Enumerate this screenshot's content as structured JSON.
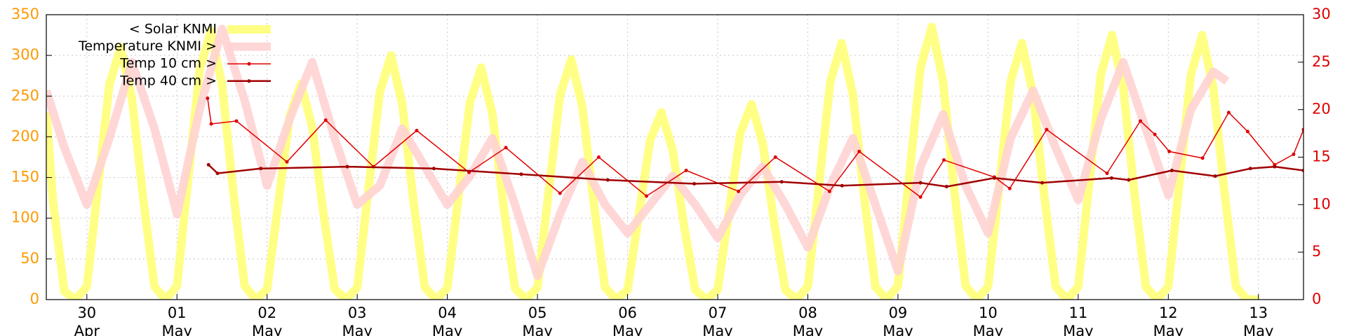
{
  "chart_data": {
    "type": "line",
    "xlim": [
      -0.45,
      13.5
    ],
    "xticks": [
      {
        "value": 0,
        "label": "30",
        "month": "Apr"
      },
      {
        "value": 1,
        "label": "01",
        "month": "May"
      },
      {
        "value": 2,
        "label": "02",
        "month": "May"
      },
      {
        "value": 3,
        "label": "03",
        "month": "May"
      },
      {
        "value": 4,
        "label": "04",
        "month": "May"
      },
      {
        "value": 5,
        "label": "05",
        "month": "May"
      },
      {
        "value": 6,
        "label": "06",
        "month": "May"
      },
      {
        "value": 7,
        "label": "07",
        "month": "May"
      },
      {
        "value": 8,
        "label": "08",
        "month": "May"
      },
      {
        "value": 9,
        "label": "09",
        "month": "May"
      },
      {
        "value": 10,
        "label": "10",
        "month": "May"
      },
      {
        "value": 11,
        "label": "11",
        "month": "May"
      },
      {
        "value": 12,
        "label": "12",
        "month": "May"
      },
      {
        "value": 13,
        "label": "13",
        "month": "May"
      }
    ],
    "ylim": [
      0,
      350
    ],
    "yticks": [
      0,
      50,
      100,
      150,
      200,
      250,
      300,
      350
    ],
    "y2lim": [
      0,
      30
    ],
    "y2ticks": [
      0,
      5,
      10,
      15,
      20,
      25,
      30
    ],
    "grid": true,
    "legend": "upper left",
    "series": [
      {
        "name": "< Solar KNMI",
        "color": "#ffff70",
        "axis": "y",
        "x": [
          -0.45,
          -0.375,
          -0.25,
          -0.125,
          0,
          0.125,
          0.25,
          0.375,
          0.5,
          0.625,
          0.75,
          0.875,
          1,
          1.125,
          1.25,
          1.375,
          1.5,
          1.625,
          1.75,
          1.875,
          2,
          2.125,
          2.25,
          2.375,
          2.5,
          2.625,
          2.75,
          2.875,
          3,
          3.125,
          3.25,
          3.375,
          3.5,
          3.625,
          3.75,
          3.875,
          4,
          4.125,
          4.25,
          4.375,
          4.5,
          4.625,
          4.75,
          4.875,
          5,
          5.125,
          5.25,
          5.375,
          5.5,
          5.625,
          5.75,
          5.875,
          6,
          6.125,
          6.25,
          6.375,
          6.5,
          6.625,
          6.75,
          6.875,
          7,
          7.125,
          7.25,
          7.375,
          7.5,
          7.625,
          7.75,
          7.875,
          8,
          8.125,
          8.25,
          8.375,
          8.5,
          8.625,
          8.75,
          8.875,
          9,
          9.125,
          9.25,
          9.375,
          9.5,
          9.625,
          9.75,
          9.875,
          10,
          10.125,
          10.25,
          10.375,
          10.5,
          10.625,
          10.75,
          10.875,
          11,
          11.125,
          11.25,
          11.375,
          11.5,
          11.625,
          11.75,
          11.875,
          12,
          12.125,
          12.25,
          12.375,
          12.5,
          12.625,
          12.75,
          12.875,
          13
        ],
        "values": [
          230,
          120,
          10,
          0,
          16,
          140,
          264,
          310,
          248,
          124,
          16,
          0,
          17,
          149,
          281,
          330,
          264,
          132,
          17,
          0,
          13,
          119,
          225,
          265,
          212,
          106,
          13,
          0,
          15,
          135,
          255,
          300,
          240,
          120,
          15,
          0,
          14,
          128,
          242,
          285,
          228,
          114,
          14,
          0,
          15,
          133,
          251,
          295,
          236,
          118,
          15,
          0,
          12,
          104,
          196,
          230,
          184,
          92,
          12,
          0,
          12,
          108,
          204,
          240,
          192,
          96,
          12,
          0,
          16,
          142,
          268,
          315,
          252,
          126,
          16,
          0,
          17,
          151,
          285,
          335,
          268,
          134,
          17,
          0,
          16,
          142,
          268,
          315,
          252,
          126,
          16,
          0,
          16,
          146,
          276,
          325,
          260,
          130,
          16,
          0,
          16,
          146,
          276,
          325,
          260,
          130,
          16,
          0,
          0
        ]
      },
      {
        "name": "Temperature KNMI >",
        "color": "#ffd3d3",
        "axis": "y2",
        "x": [
          -0.45,
          -0.25,
          0,
          0.25,
          0.5,
          0.75,
          1,
          1.25,
          1.5,
          1.75,
          2,
          2.25,
          2.5,
          2.75,
          3,
          3.25,
          3.5,
          3.75,
          4,
          4.25,
          4.5,
          4.75,
          5,
          5.25,
          5.5,
          5.75,
          6,
          6.25,
          6.5,
          6.75,
          7,
          7.25,
          7.5,
          7.75,
          8,
          8.25,
          8.5,
          8.75,
          9,
          9.25,
          9.5,
          9.75,
          10,
          10.25,
          10.5,
          10.75,
          11,
          11.25,
          11.5,
          11.75,
          12,
          12.25,
          12.5,
          12.65
        ],
        "values": [
          22,
          16,
          10,
          17,
          25,
          18,
          9,
          20,
          28.5,
          21,
          12,
          19,
          25,
          17,
          10,
          12,
          18,
          14,
          10,
          13,
          17,
          10,
          2.5,
          9,
          14.5,
          10,
          7,
          10,
          13,
          10,
          6.5,
          11,
          14,
          10,
          5.5,
          12,
          17,
          10,
          3,
          14,
          19.5,
          12,
          7,
          17,
          22,
          16,
          10.5,
          19,
          25,
          18,
          11,
          20,
          24,
          23
        ]
      },
      {
        "name": "Temp 10 cm >",
        "color": "#e00000",
        "axis": "y2",
        "marker": true,
        "x": [
          1.34,
          1.38,
          1.66,
          2.22,
          2.65,
          3.18,
          3.66,
          4.24,
          4.65,
          5.25,
          5.68,
          6.21,
          6.65,
          7.23,
          7.64,
          8.24,
          8.57,
          9.25,
          9.51,
          10.07,
          10.24,
          10.65,
          11.32,
          11.69,
          11.85,
          12.01,
          12.38,
          12.67,
          12.88,
          13.18,
          13.39,
          13.5
        ],
        "values": [
          21.2,
          18.5,
          18.8,
          14.5,
          18.9,
          14,
          17.8,
          13.4,
          16,
          11.2,
          15,
          10.9,
          13.6,
          11.4,
          15,
          11.4,
          15.6,
          10.8,
          14.7,
          12.9,
          11.7,
          17.9,
          13.3,
          18.8,
          17.4,
          15.6,
          14.9,
          19.7,
          17.7,
          14.2,
          15.3,
          17.9
        ]
      },
      {
        "name": "Temp 40 cm >",
        "color": "#a00000",
        "axis": "y2",
        "marker": true,
        "x": [
          1.35,
          1.45,
          1.93,
          2.89,
          3.85,
          4.82,
          5.78,
          6.74,
          7.71,
          8.38,
          9.25,
          9.54,
          10.07,
          10.6,
          11.37,
          11.56,
          12.04,
          12.52,
          12.91,
          13.18,
          13.5
        ],
        "values": [
          14.2,
          13.3,
          13.8,
          14,
          13.8,
          13.2,
          12.6,
          12.2,
          12.4,
          12,
          12.3,
          11.9,
          12.8,
          12.3,
          12.8,
          12.6,
          13.6,
          13,
          13.8,
          14,
          13.6
        ]
      }
    ]
  }
}
